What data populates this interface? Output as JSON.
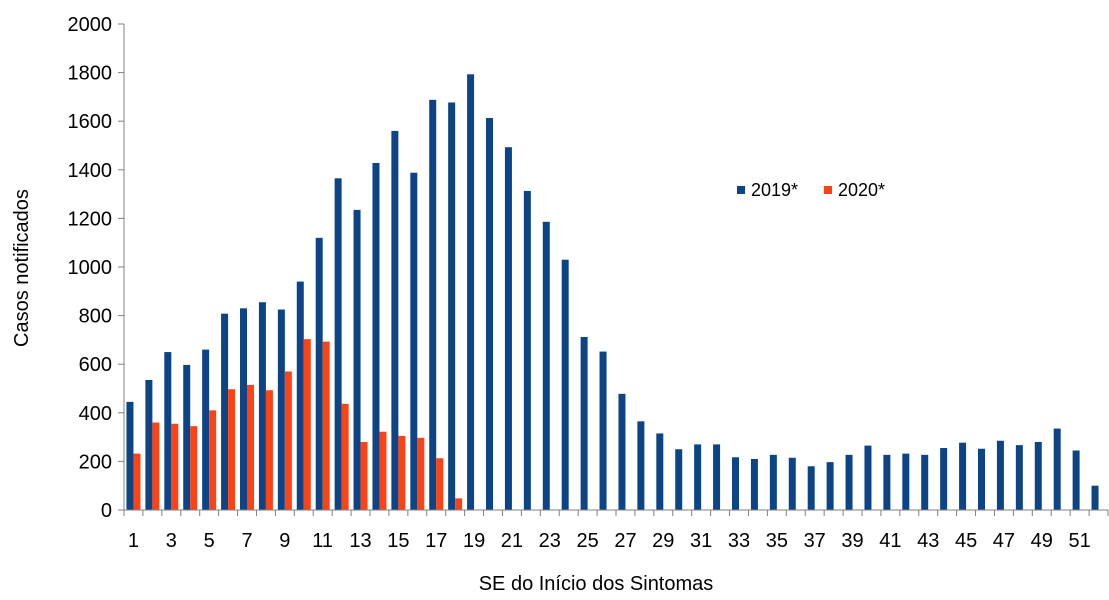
{
  "chart_data": {
    "type": "bar",
    "xlabel": "SE do Início dos Sintomas",
    "ylabel": "Casos notificados",
    "ylim": [
      0,
      2000
    ],
    "yticks": [
      0,
      200,
      400,
      600,
      800,
      1000,
      1200,
      1400,
      1600,
      1800,
      2000
    ],
    "grid": false,
    "legend_position": "right",
    "categories": [
      "1",
      "2",
      "3",
      "4",
      "5",
      "6",
      "7",
      "8",
      "9",
      "10",
      "11",
      "12",
      "13",
      "14",
      "15",
      "16",
      "17",
      "18",
      "19",
      "20",
      "21",
      "22",
      "23",
      "24",
      "25",
      "26",
      "27",
      "28",
      "29",
      "30",
      "31",
      "32",
      "33",
      "34",
      "35",
      "36",
      "37",
      "38",
      "39",
      "40",
      "41",
      "42",
      "43",
      "44",
      "45",
      "46",
      "47",
      "48",
      "49",
      "50",
      "51",
      "52"
    ],
    "xtick_labels": [
      "1",
      "3",
      "5",
      "7",
      "9",
      "11",
      "13",
      "15",
      "17",
      "19",
      "21",
      "23",
      "25",
      "27",
      "29",
      "31",
      "33",
      "35",
      "37",
      "39",
      "41",
      "43",
      "45",
      "47",
      "49",
      "51"
    ],
    "series": [
      {
        "name": "2019*",
        "color": "#0d4486",
        "values": [
          445,
          535,
          650,
          597,
          660,
          808,
          830,
          855,
          825,
          940,
          1120,
          1365,
          1235,
          1428,
          1560,
          1388,
          1688,
          1677,
          1793,
          1613,
          1493,
          1313,
          1186,
          1030,
          712,
          652,
          478,
          365,
          315,
          250,
          270,
          270,
          217,
          210,
          227,
          215,
          180,
          197,
          227,
          265,
          227,
          232,
          227,
          255,
          277,
          252,
          285,
          267,
          280,
          335,
          245,
          100
        ]
      },
      {
        "name": "2020*",
        "color": "#fb4315",
        "values": [
          232,
          360,
          355,
          345,
          410,
          497,
          515,
          493,
          570,
          703,
          693,
          437,
          280,
          322,
          305,
          297,
          213,
          48,
          null,
          null,
          null,
          null,
          null,
          null,
          null,
          null,
          null,
          null,
          null,
          null,
          null,
          null,
          null,
          null,
          null,
          null,
          null,
          null,
          null,
          null,
          null,
          null,
          null,
          null,
          null,
          null,
          null,
          null,
          null,
          null,
          null,
          null
        ]
      }
    ]
  }
}
